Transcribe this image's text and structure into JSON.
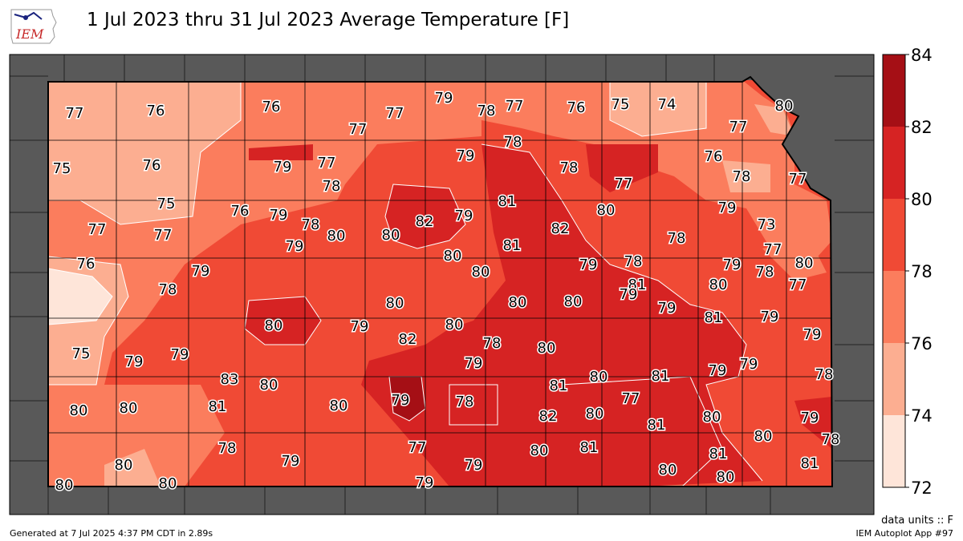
{
  "header": {
    "logo_text": "IEM",
    "title": "1 Jul 2023 thru 31 Jul 2023 Average Temperature [F]"
  },
  "colors": {
    "neighbor_state": "#595959",
    "levels": [
      "#fee0d2",
      "#fcbba1",
      "#fc9272",
      "#fb6a4a",
      "#ef3b2c",
      "#cb181d",
      "#a50f15"
    ],
    "bands": [
      "#fee5d9",
      "#fcae91",
      "#fb7d5d",
      "#f04a35",
      "#d62323",
      "#a50f15"
    ]
  },
  "colorbar": {
    "ticks": [
      "72",
      "74",
      "76",
      "78",
      "80",
      "82",
      "84"
    ],
    "values": [
      72,
      74,
      76,
      78,
      80,
      82,
      84
    ]
  },
  "labels": [
    "77",
    "76",
    "76",
    "77",
    "77",
    "79",
    "78",
    "77",
    "76",
    "75",
    "74",
    "80",
    "78",
    "79",
    "78",
    "77",
    "79",
    "78",
    "77",
    "77",
    "75",
    "76",
    "76",
    "78",
    "77",
    "81",
    "75",
    "76",
    "79",
    "82",
    "79",
    "80",
    "79",
    "77",
    "77",
    "78",
    "80",
    "80",
    "82",
    "81",
    "78",
    "77",
    "76",
    "79",
    "79",
    "80",
    "80",
    "79",
    "78",
    "78",
    "80",
    "78",
    "81",
    "79",
    "73",
    "77",
    "80",
    "80",
    "79",
    "79",
    "80",
    "80",
    "79",
    "81",
    "80",
    "80",
    "75",
    "79",
    "79",
    "80",
    "82",
    "78",
    "79",
    "79",
    "79",
    "80",
    "81",
    "81",
    "81",
    "80",
    "78",
    "77",
    "79",
    "78",
    "83",
    "79",
    "80",
    "79",
    "80",
    "82",
    "80",
    "79",
    "80",
    "80",
    "77",
    "79",
    "81",
    "81",
    "80",
    "80",
    "80",
    "78",
    "78",
    "80",
    "79",
    "79",
    "80",
    "81",
    "81",
    "80",
    "80",
    "81",
    "80"
  ],
  "footer": {
    "generated": "Generated at 7 Jul 2025 4:37 PM CDT in 2.89s",
    "units": "data units :: F",
    "app": "IEM Autoplot App #97"
  }
}
